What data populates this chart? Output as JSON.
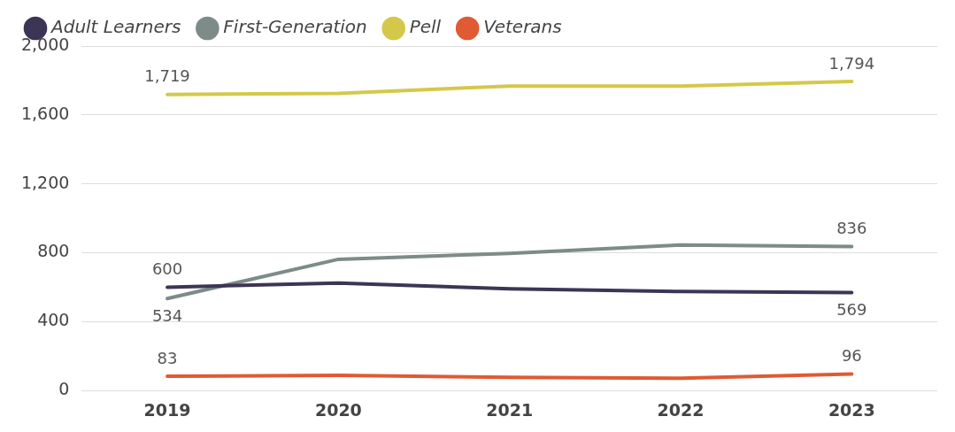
{
  "chart_data": {
    "type": "line",
    "categories": [
      "2019",
      "2020",
      "2021",
      "2022",
      "2023"
    ],
    "series": [
      {
        "name": "Adult Learners",
        "color": "#3d3555",
        "values": [
          600,
          624,
          591,
          575,
          569
        ],
        "value_labels": [
          "600",
          null,
          null,
          null,
          "569"
        ]
      },
      {
        "name": "First-Generation",
        "color": "#7d8b89",
        "values": [
          534,
          762,
          796,
          845,
          836
        ],
        "value_labels": [
          "534",
          null,
          null,
          null,
          "836"
        ]
      },
      {
        "name": "Pell",
        "color": "#d4c84a",
        "values": [
          1719,
          1725,
          1768,
          1768,
          1794
        ],
        "value_labels": [
          "1,719",
          null,
          null,
          null,
          "1,794"
        ]
      },
      {
        "name": "Veterans",
        "color": "#e05a33",
        "values": [
          83,
          88,
          77,
          72,
          96
        ],
        "value_labels": [
          "83",
          null,
          null,
          null,
          "96"
        ]
      }
    ],
    "ylim": [
      0,
      2000
    ],
    "yticks": [
      {
        "value": 0,
        "label": "0"
      },
      {
        "value": 400,
        "label": "400"
      },
      {
        "value": 800,
        "label": "800"
      },
      {
        "value": 1200,
        "label": "1,200"
      },
      {
        "value": 1600,
        "label": "1,600"
      },
      {
        "value": 2000,
        "label": "2,000"
      }
    ],
    "grid": "y",
    "legend": "top left"
  }
}
